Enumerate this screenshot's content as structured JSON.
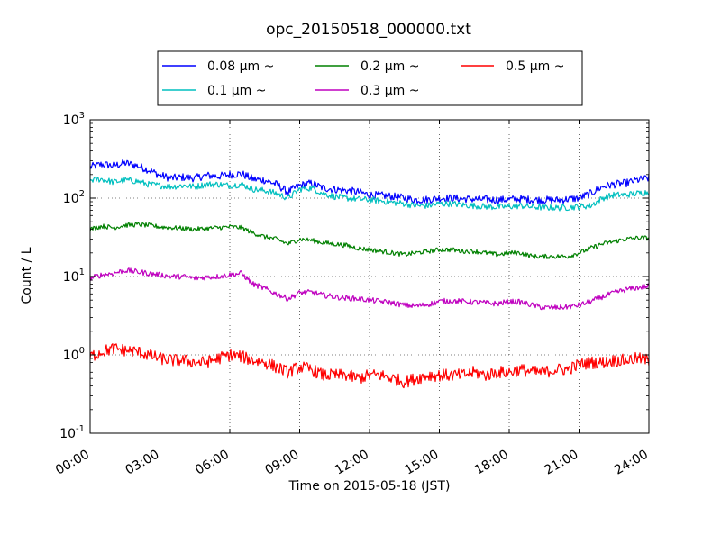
{
  "chart_data": {
    "type": "line",
    "title": "opc_20150518_000000.txt",
    "xlabel": "Time on 2015-05-18 (JST)",
    "ylabel": "Count / L",
    "x_unit": "hours",
    "xlim": [
      0,
      24
    ],
    "ylim": [
      0.1,
      1000
    ],
    "yscale": "log",
    "grid": true,
    "legend_position": "top-center",
    "x_ticks": [
      "00:00",
      "03:00",
      "06:00",
      "09:00",
      "12:00",
      "15:00",
      "18:00",
      "21:00",
      "24:00"
    ],
    "y_ticks": [
      {
        "base": "10",
        "exp": "-1"
      },
      {
        "base": "10",
        "exp": "0"
      },
      {
        "base": "10",
        "exp": "1"
      },
      {
        "base": "10",
        "exp": "2"
      },
      {
        "base": "10",
        "exp": "3"
      }
    ],
    "x": [
      0,
      0.5,
      1,
      1.5,
      2,
      2.5,
      3,
      3.5,
      4,
      4.5,
      5,
      5.5,
      6,
      6.5,
      7,
      7.5,
      8,
      8.5,
      9,
      9.5,
      10,
      10.5,
      11,
      11.5,
      12,
      12.5,
      13,
      13.5,
      14,
      14.5,
      15,
      15.5,
      16,
      16.5,
      17,
      17.5,
      18,
      18.5,
      19,
      19.5,
      20,
      20.5,
      21,
      21.5,
      22,
      22.5,
      23,
      23.5,
      24
    ],
    "series": [
      {
        "name": "0.08 μm ~",
        "color": "#0000ff",
        "noise": 0.05,
        "values": [
          250,
          270,
          260,
          280,
          260,
          230,
          195,
          180,
          185,
          180,
          195,
          190,
          200,
          205,
          175,
          170,
          150,
          120,
          145,
          155,
          135,
          130,
          125,
          120,
          110,
          108,
          105,
          100,
          95,
          96,
          100,
          100,
          98,
          97,
          96,
          95,
          96,
          98,
          95,
          95,
          94,
          97,
          100,
          115,
          140,
          150,
          155,
          170,
          180
        ]
      },
      {
        "name": "0.1 μm ~",
        "color": "#00bfbf",
        "noise": 0.04,
        "values": [
          170,
          175,
          160,
          170,
          165,
          150,
          145,
          140,
          145,
          140,
          150,
          150,
          145,
          150,
          130,
          125,
          115,
          100,
          130,
          135,
          115,
          105,
          100,
          97,
          95,
          92,
          88,
          85,
          80,
          80,
          85,
          85,
          82,
          80,
          78,
          77,
          78,
          80,
          77,
          76,
          75,
          76,
          78,
          80,
          100,
          110,
          110,
          115,
          120
        ]
      },
      {
        "name": "0.2 μm ~",
        "color": "#008000",
        "noise": 0.03,
        "values": [
          40,
          44,
          42,
          45,
          46,
          45,
          43,
          42,
          41,
          40,
          41,
          42,
          43,
          42,
          36,
          32,
          30,
          26,
          30,
          29,
          27,
          26,
          25,
          23,
          22,
          21,
          20,
          19,
          20,
          21,
          22,
          22,
          21,
          21,
          20,
          19,
          20,
          20,
          18,
          18,
          18,
          18,
          20,
          23,
          26,
          28,
          30,
          31,
          31
        ]
      },
      {
        "name": "0.3 μm ~",
        "color": "#bf00bf",
        "noise": 0.035,
        "values": [
          9.5,
          10.5,
          11,
          12,
          11.5,
          11,
          10.5,
          10,
          10,
          9.5,
          9.8,
          10,
          10.5,
          11,
          8,
          7,
          6,
          5.2,
          6.2,
          6.3,
          5.8,
          5.5,
          5.3,
          5.2,
          5,
          4.8,
          4.6,
          4.3,
          4.2,
          4.4,
          4.8,
          4.9,
          4.8,
          4.7,
          4.6,
          4.5,
          4.8,
          4.7,
          4.3,
          4,
          4,
          4.1,
          4.3,
          4.8,
          5.5,
          6.2,
          6.8,
          7.2,
          7.5
        ]
      },
      {
        "name": "0.5 μm ~",
        "color": "#ff0000",
        "noise": 0.08,
        "values": [
          0.95,
          1.1,
          1.2,
          1.15,
          1.1,
          1.0,
          0.9,
          0.85,
          0.85,
          0.8,
          0.8,
          0.9,
          1.0,
          0.95,
          0.85,
          0.8,
          0.7,
          0.6,
          0.7,
          0.65,
          0.55,
          0.55,
          0.55,
          0.5,
          0.55,
          0.55,
          0.5,
          0.45,
          0.5,
          0.55,
          0.55,
          0.55,
          0.55,
          0.6,
          0.55,
          0.6,
          0.6,
          0.65,
          0.6,
          0.6,
          0.65,
          0.65,
          0.75,
          0.8,
          0.8,
          0.85,
          0.85,
          0.9,
          0.85
        ]
      }
    ]
  }
}
